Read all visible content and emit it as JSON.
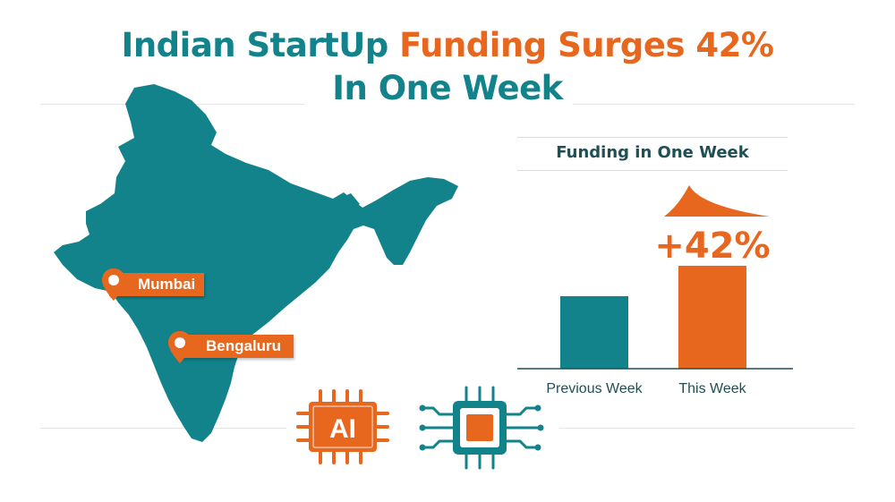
{
  "title": {
    "part1": "Indian StartUp ",
    "part2": "Funding Surges 42%",
    "line2": "In One Week"
  },
  "map": {
    "cities": [
      "Mumbai",
      "Bengaluru"
    ]
  },
  "chart_data": {
    "type": "bar",
    "title": "Funding in One Week",
    "categories": [
      "Previous Week",
      "This Week"
    ],
    "values": [
      1,
      1.42
    ],
    "annotation": "+42%",
    "colors": [
      "#12838b",
      "#e8671e"
    ],
    "grid": false
  },
  "icons": {
    "ai_chip_text": "AI"
  },
  "colors": {
    "teal": "#12838b",
    "orange": "#e8671e"
  }
}
